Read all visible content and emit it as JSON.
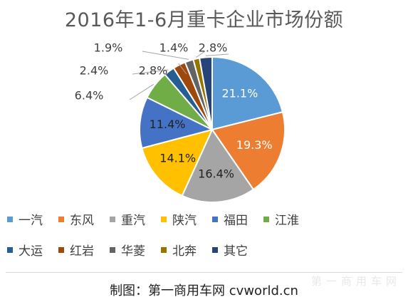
{
  "chart_data": {
    "type": "pie",
    "title": "2016年1-6月重卡企业市场份额",
    "slices": [
      {
        "name": "一汽",
        "value": 21.1,
        "label": "21.1%",
        "color": "#5B9BD5"
      },
      {
        "name": "东风",
        "value": 19.3,
        "label": "19.3%",
        "color": "#ED7D31"
      },
      {
        "name": "重汽",
        "value": 16.4,
        "label": "16.4%",
        "color": "#A5A5A5"
      },
      {
        "name": "陕汽",
        "value": 14.1,
        "label": "14.1%",
        "color": "#FFC000"
      },
      {
        "name": "福田",
        "value": 11.4,
        "label": "11.4%",
        "color": "#4472C4"
      },
      {
        "name": "江淮",
        "value": 6.4,
        "label": "6.4%",
        "color": "#70AD47"
      },
      {
        "name": "大运",
        "value": 2.4,
        "label": "2.4%",
        "color": "#255E91"
      },
      {
        "name": "红岩",
        "value": 2.8,
        "label": "2.8%",
        "color": "#9E480E"
      },
      {
        "name": "华菱",
        "value": 1.9,
        "label": "1.9%",
        "color": "#636363"
      },
      {
        "name": "北奔",
        "value": 1.4,
        "label": "1.4%",
        "color": "#997300"
      },
      {
        "name": "其它",
        "value": 2.8,
        "label": "2.8%",
        "color": "#264478"
      }
    ],
    "legend_position": "bottom"
  },
  "footer": {
    "credit": "制图：第一商用车网 cvworld.cn",
    "watermark": "第一商用车网"
  }
}
